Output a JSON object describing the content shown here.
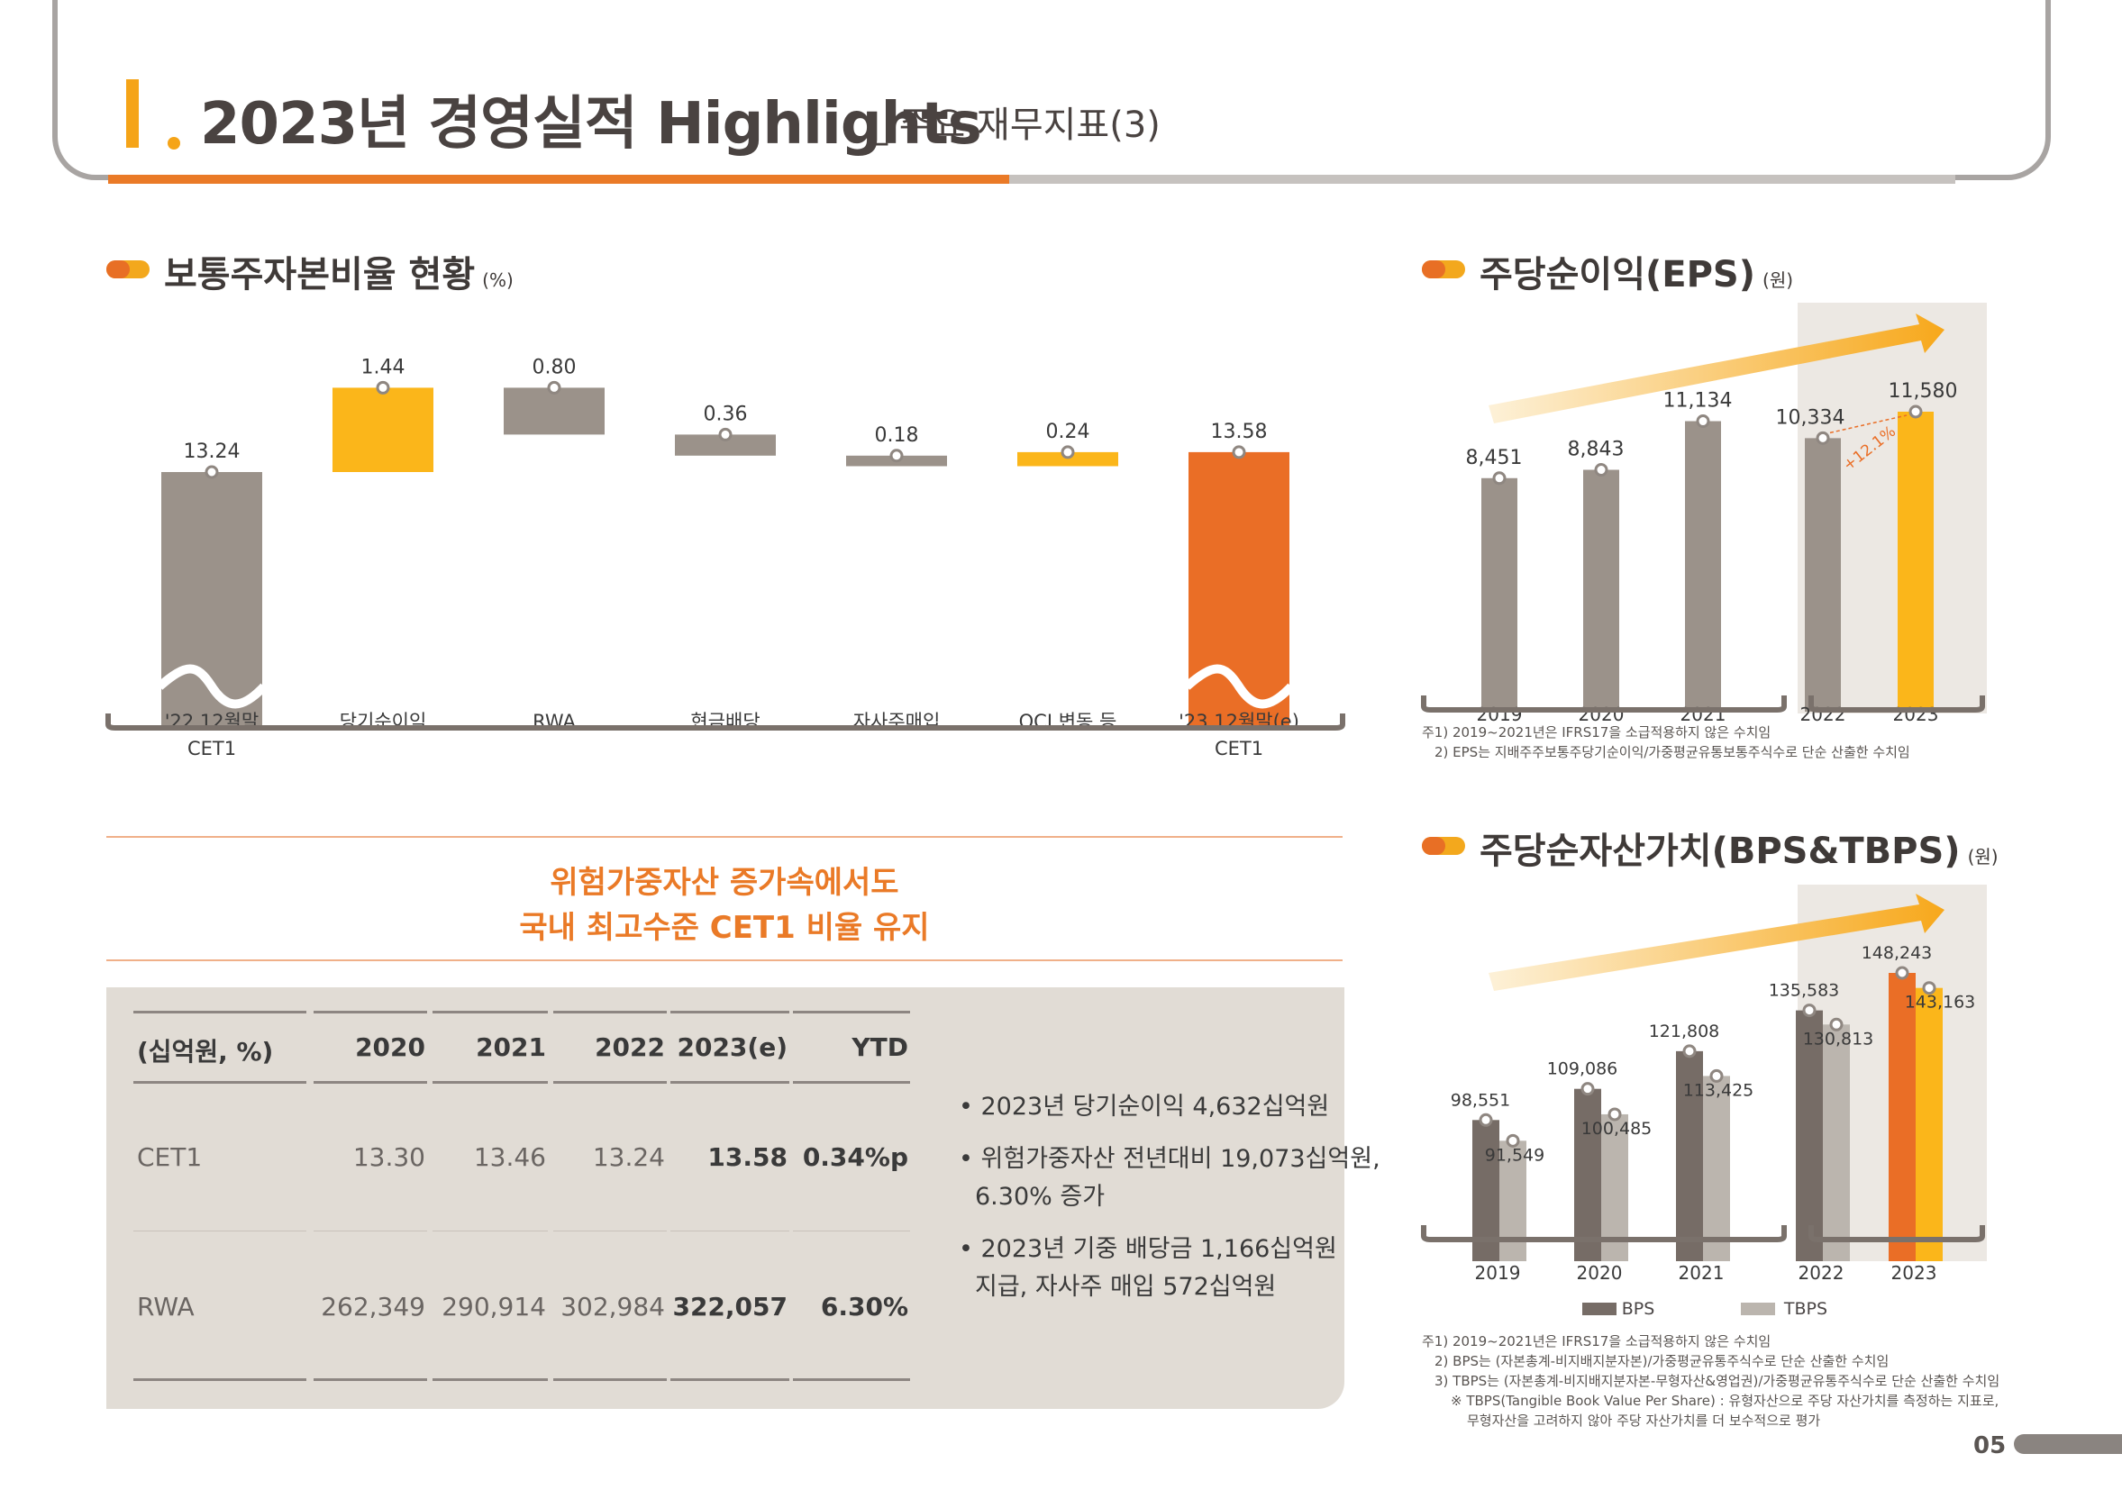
{
  "header": {
    "title": "2023년 경영실적 Highlights",
    "subtitle": "_ 주요 재무지표(3)"
  },
  "cet1_section": {
    "title": "보통주자본비율 현황",
    "unit": "(%)"
  },
  "eps_section": {
    "title": "주당순이익(EPS)",
    "unit": "(원)"
  },
  "bps_section": {
    "title": "주당순자산가치(BPS&TBPS)",
    "unit": "(원)"
  },
  "summary": {
    "line1": "위험가중자산 증가속에서도",
    "line2": "국내 최고수준 CET1 비율 유지"
  },
  "table": {
    "headers": [
      "(십억원, %)",
      "2020",
      "2021",
      "2022",
      "2023(e)",
      "YTD"
    ],
    "rows": [
      [
        "CET1",
        "13.30",
        "13.46",
        "13.24",
        "13.58",
        "0.34%p"
      ],
      [
        "RWA",
        "262,349",
        "290,914",
        "302,984",
        "322,057",
        "6.30%"
      ]
    ]
  },
  "bullets": {
    "b1": "• 2023년 당기순이익 4,632십억원",
    "b2": "• 위험가중자산 전년대비 19,073십억원,",
    "b2_cont": "6.30% 증가",
    "b3": "• 2023년 기중 배당금 1,166십억원",
    "b3_cont": "지급, 자사주 매입 572십억원"
  },
  "eps_notes": {
    "n1": "주1) 2019~2021년은 IFRS17을 소급적용하지 않은 수치임",
    "n2": "2) EPS는 지배주주보통주당기순이익/가중평균유통보통주식수로 단순 산출한 수치임"
  },
  "bps_notes": {
    "n1": "주1) 2019~2021년은 IFRS17을 소급적용하지 않은 수치임",
    "n2": "2)  BPS는 (자본총계-비지배지분자본)/가중평균유통주식수로 단순 산출한 수치임",
    "n3": "3) TBPS는 (자본총계-비지배지분자본-무형자산&영업권)/가중평균유통주식수로 단순 산출한 수치임",
    "n4": "※ TBPS(Tangible Book Value Per Share) : 유형자산으로 주당 자산가치를 측정하는 지표로,",
    "n5": "무형자산을 고려하지 않아 주당 자산가치를 더 보수적으로 평가"
  },
  "page_number": "05",
  "colors": {
    "grey": "#9b928a",
    "yellow": "#fbb61a",
    "orange": "#ea6e26",
    "dark_grey": "#766c66",
    "light_grey": "#bbb5ae"
  },
  "chart_data": [
    {
      "type": "bar",
      "subtype": "waterfall",
      "title": "보통주자본비율 현황",
      "unit": "(%)",
      "categories": [
        "'22.12월말\nCET1",
        "당기순이익",
        "RWA",
        "현금배당",
        "자사주매입",
        "OCI 변동 등",
        "'23.12월말(e)\nCET1"
      ],
      "values": [
        13.24,
        1.44,
        -0.8,
        -0.36,
        -0.18,
        0.24,
        13.58
      ],
      "labels": [
        "13.24",
        "1.44",
        "0.80",
        "0.36",
        "0.18",
        "0.24",
        "13.58"
      ],
      "kinds": [
        "total",
        "increase",
        "decrease",
        "decrease",
        "decrease",
        "increase",
        "total"
      ],
      "axis_break": true
    },
    {
      "type": "bar",
      "title": "주당순이익(EPS)",
      "unit": "(원)",
      "categories": [
        "2019",
        "2020",
        "2021",
        "2022",
        "2023"
      ],
      "values": [
        8451,
        8843,
        11134,
        10334,
        11580
      ],
      "labels": [
        "8,451",
        "8,843",
        "11,134",
        "10,334",
        "11,580"
      ],
      "annotation": "+12.1%"
    },
    {
      "type": "bar",
      "title": "주당순자산가치(BPS&TBPS)",
      "unit": "(원)",
      "categories": [
        "2019",
        "2020",
        "2021",
        "2022",
        "2023"
      ],
      "series": [
        {
          "name": "BPS",
          "values": [
            98551,
            109086,
            121808,
            135583,
            148243
          ],
          "labels": [
            "98,551",
            "109,086",
            "121,808",
            "135,583",
            "148,243"
          ]
        },
        {
          "name": "TBPS",
          "values": [
            91549,
            100485,
            113425,
            130813,
            143163
          ],
          "labels": [
            "91,549",
            "100,485",
            "113,425",
            "130,813",
            "143,163"
          ]
        }
      ],
      "legend": "bottom"
    }
  ]
}
